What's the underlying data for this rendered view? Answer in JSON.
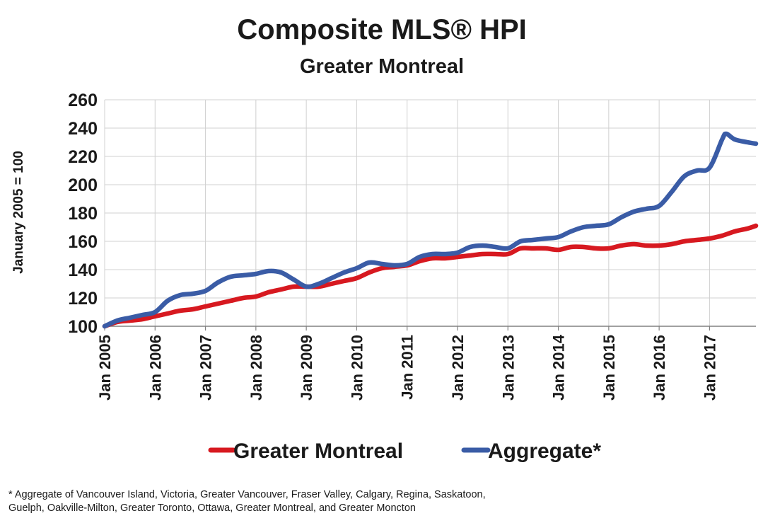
{
  "chart_data": {
    "type": "line",
    "title": "Composite MLS® HPI",
    "subtitle": "Greater Montreal",
    "ylabel": "January 2005 = 100",
    "xlabel": "",
    "ylim": [
      100,
      260
    ],
    "yticks": [
      100,
      120,
      140,
      160,
      180,
      200,
      220,
      240,
      260
    ],
    "x_tick_labels": [
      "Jan 2005",
      "Jan 2006",
      "Jan 2007",
      "Jan 2008",
      "Jan 2009",
      "Jan 2010",
      "Jan 2011",
      "Jan 2012",
      "Jan 2013",
      "Jan 2014",
      "Jan 2015",
      "Jan 2016",
      "Jan 2017"
    ],
    "x_tick_years": [
      2005,
      2006,
      2007,
      2008,
      2009,
      2010,
      2011,
      2012,
      2013,
      2014,
      2015,
      2016,
      2017
    ],
    "xlim": [
      2005.0,
      2017.92
    ],
    "grid": true,
    "legend_position": "bottom",
    "series": [
      {
        "name": "Greater Montreal",
        "color": "#d71920",
        "x": [
          2005.0,
          2005.25,
          2005.5,
          2005.75,
          2006.0,
          2006.25,
          2006.5,
          2006.75,
          2007.0,
          2007.25,
          2007.5,
          2007.75,
          2008.0,
          2008.25,
          2008.5,
          2008.75,
          2009.0,
          2009.25,
          2009.5,
          2009.75,
          2010.0,
          2010.25,
          2010.5,
          2010.75,
          2011.0,
          2011.25,
          2011.5,
          2011.75,
          2012.0,
          2012.25,
          2012.5,
          2012.75,
          2013.0,
          2013.25,
          2013.5,
          2013.75,
          2014.0,
          2014.25,
          2014.5,
          2014.75,
          2015.0,
          2015.25,
          2015.5,
          2015.75,
          2016.0,
          2016.25,
          2016.5,
          2016.75,
          2017.0,
          2017.25,
          2017.5,
          2017.75,
          2017.92
        ],
        "values": [
          100,
          103,
          104,
          105,
          107,
          109,
          111,
          112,
          114,
          116,
          118,
          120,
          121,
          124,
          126,
          128,
          128,
          128,
          130,
          132,
          134,
          138,
          141,
          142,
          143,
          146,
          148,
          148,
          149,
          150,
          151,
          151,
          151,
          155,
          155,
          155,
          154,
          156,
          156,
          155,
          155,
          157,
          158,
          157,
          157,
          158,
          160,
          161,
          162,
          164,
          167,
          169,
          171
        ]
      },
      {
        "name": "Aggregate*",
        "color": "#3a5ca6",
        "x": [
          2005.0,
          2005.25,
          2005.5,
          2005.75,
          2006.0,
          2006.25,
          2006.5,
          2006.75,
          2007.0,
          2007.25,
          2007.5,
          2007.75,
          2008.0,
          2008.25,
          2008.5,
          2008.75,
          2009.0,
          2009.25,
          2009.5,
          2009.75,
          2010.0,
          2010.25,
          2010.5,
          2010.75,
          2011.0,
          2011.25,
          2011.5,
          2011.75,
          2012.0,
          2012.25,
          2012.5,
          2012.75,
          2013.0,
          2013.25,
          2013.5,
          2013.75,
          2014.0,
          2014.25,
          2014.5,
          2014.75,
          2015.0,
          2015.25,
          2015.5,
          2015.75,
          2016.0,
          2016.25,
          2016.5,
          2016.75,
          2017.0,
          2017.25,
          2017.33,
          2017.5,
          2017.75,
          2017.92
        ],
        "values": [
          100,
          104,
          106,
          108,
          110,
          118,
          122,
          123,
          125,
          131,
          135,
          136,
          137,
          139,
          138,
          133,
          128,
          130,
          134,
          138,
          141,
          145,
          144,
          143,
          144,
          149,
          151,
          151,
          152,
          156,
          157,
          156,
          155,
          160,
          161,
          162,
          163,
          167,
          170,
          171,
          172,
          177,
          181,
          183,
          185,
          195,
          206,
          210,
          212,
          232,
          236,
          232,
          230,
          229
        ]
      }
    ]
  },
  "footnote": {
    "line1": "* Aggregate of Vancouver Island, Victoria, Greater Vancouver, Fraser Valley, Calgary, Regina, Saskatoon,",
    "line2": "Guelph, Oakville-Milton, Greater Toronto, Ottawa, Greater Montreal, and Greater Moncton"
  }
}
